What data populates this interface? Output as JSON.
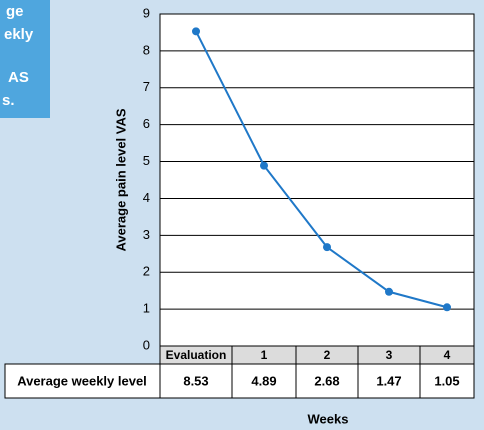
{
  "caption_fragment": [
    "ge",
    "ekly",
    "AS",
    "s."
  ],
  "chart_data": {
    "type": "line",
    "y_label": "Average pain level VAS",
    "x_label": "Weeks",
    "table_row_label": "Average weekly level",
    "categories": [
      "Evaluation",
      "1",
      "2",
      "3",
      "4"
    ],
    "series": [
      {
        "name": "Average weekly level",
        "color": "#1f78c8",
        "values": [
          8.53,
          4.89,
          2.68,
          1.47,
          1.05
        ]
      }
    ],
    "ylim": [
      0,
      9
    ],
    "yticks": [
      0,
      1,
      2,
      3,
      4,
      5,
      6,
      7,
      8,
      9
    ],
    "grid": true
  }
}
